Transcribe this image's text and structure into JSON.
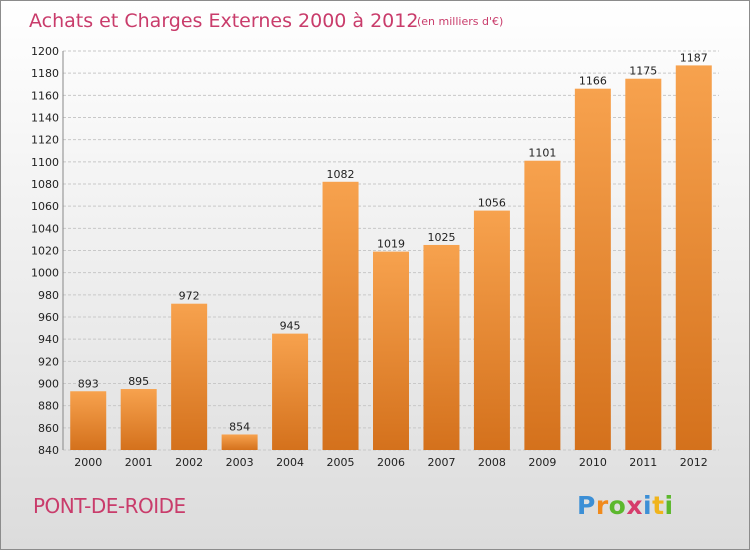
{
  "chart_data": {
    "type": "bar",
    "title": "Achats et Charges Externes 2000 à 2012",
    "subtitle": "(en milliers d'€)",
    "categories": [
      "2000",
      "2001",
      "2002",
      "2003",
      "2004",
      "2005",
      "2006",
      "2007",
      "2008",
      "2009",
      "2010",
      "2011",
      "2012"
    ],
    "values": [
      893,
      895,
      972,
      854,
      945,
      1082,
      1019,
      1025,
      1056,
      1101,
      1166,
      1175,
      1187
    ],
    "value_labels": [
      "893",
      "895",
      "972",
      "854",
      "945",
      "1082",
      "1019",
      "1025",
      "1056",
      "1101",
      "1166",
      "1175",
      "1187"
    ],
    "ylim": [
      840,
      1200
    ],
    "yticks": [
      "840",
      "860",
      "880",
      "900",
      "920",
      "940",
      "960",
      "980",
      "1000",
      "1020",
      "1040",
      "1060",
      "1080",
      "1100",
      "1120",
      "1140",
      "1160",
      "1180",
      "1200"
    ],
    "grid": true,
    "bar_color_top": "#f7a24e",
    "bar_color_bottom": "#d4711c"
  },
  "footer": {
    "commune": "PONT-DE-ROIDE",
    "logo_letters": [
      "P",
      "r",
      "o",
      "x",
      "i",
      "t",
      "i"
    ],
    "logo_colors": [
      "#3c8fd6",
      "#f08a1c",
      "#5cb82d",
      "#d63c6b",
      "#3c8fd6",
      "#f0b41c",
      "#5cb82d"
    ]
  }
}
